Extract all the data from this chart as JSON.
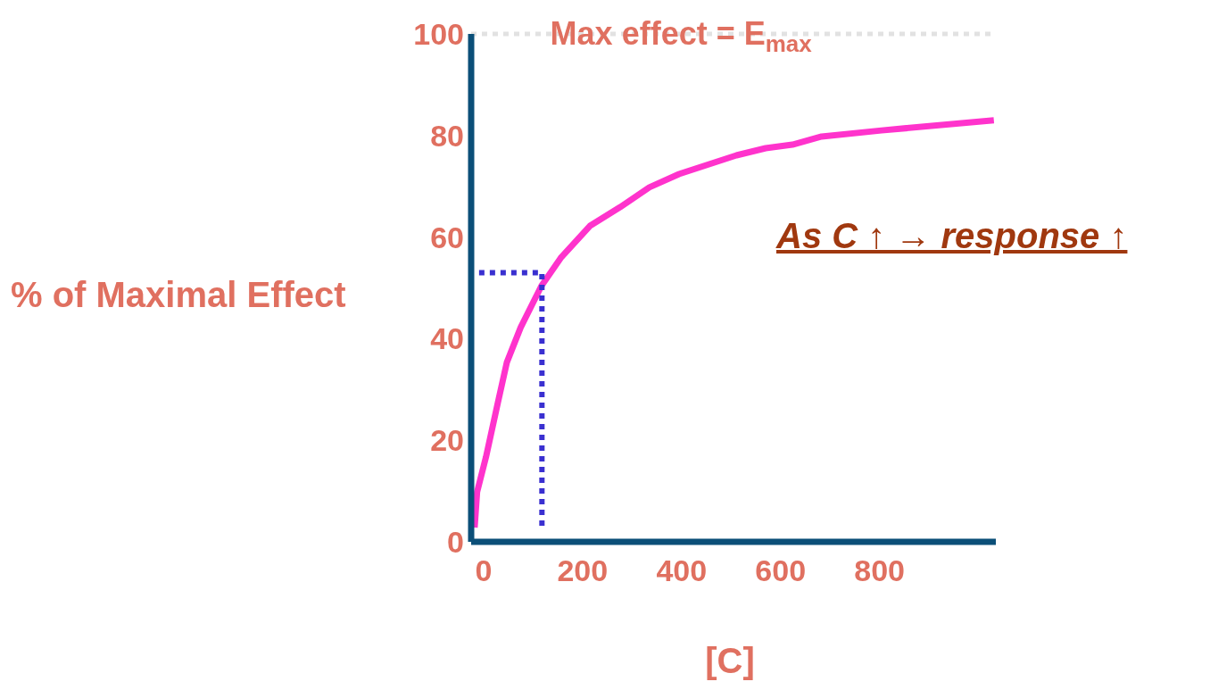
{
  "chart_data": {
    "type": "line",
    "xlabel": "[C]",
    "ylabel": "% of Maximal Effect",
    "xlim": [
      -25,
      1035
    ],
    "ylim": [
      0,
      100
    ],
    "xticks": [
      0,
      200,
      400,
      600,
      800
    ],
    "yticks": [
      0,
      20,
      40,
      60,
      80,
      100
    ],
    "marker": "none",
    "series": [
      {
        "color": "#ff33cc",
        "line_style": "solid",
        "x": [
          -18,
          -13,
          5,
          29,
          47,
          75,
          117,
          156,
          215,
          276,
          335,
          395,
          511,
          570,
          624,
          683,
          804,
          1031
        ],
        "values": [
          2.8,
          9.8,
          16.7,
          27.4,
          35.3,
          42.2,
          50.4,
          55.9,
          62.2,
          65.9,
          69.8,
          72.4,
          76.1,
          77.5,
          78.2,
          79.8,
          81.0,
          83.0
        ]
      },
      {
        "color": "#3a30d0",
        "line_style": "dotted",
        "x": [
          -9,
          118,
          118
        ],
        "values": [
          53,
          53,
          3
        ]
      }
    ],
    "ref_lines": [
      {
        "axis": "y",
        "value": 100,
        "label": "Max effect = E$_{max}$",
        "color": "#e2e2e2",
        "line_style": "dotted"
      }
    ],
    "annotations": [
      "As C ↑ → response ↑"
    ]
  }
}
